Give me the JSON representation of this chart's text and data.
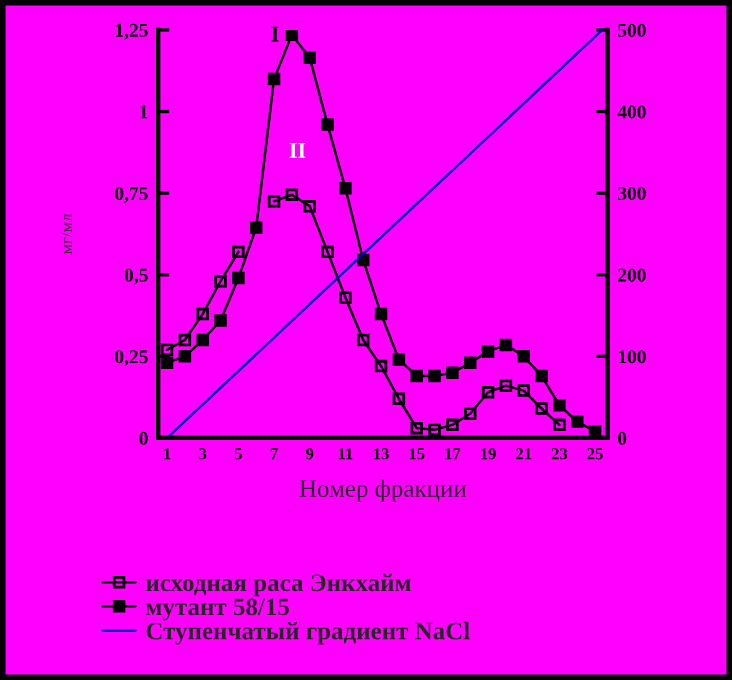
{
  "chart_data": {
    "type": "line",
    "xlabel": "Номер фракции",
    "ylabel": "мг/мл",
    "x": [
      1,
      2,
      3,
      4,
      5,
      6,
      7,
      8,
      9,
      10,
      11,
      12,
      13,
      14,
      15,
      16,
      17,
      18,
      19,
      20,
      21,
      22,
      23,
      24,
      25
    ],
    "xlim": [
      0.5,
      25.7
    ],
    "xticks": [
      1,
      3,
      5,
      7,
      9,
      11,
      13,
      15,
      17,
      19,
      21,
      23,
      25
    ],
    "ylim": [
      0,
      1.25
    ],
    "yticks": [
      0,
      {
        "value": 0.25,
        "label": "0,25"
      },
      {
        "value": 0.5,
        "label": "0,5"
      },
      {
        "value": 0.75,
        "label": "0,75"
      },
      1,
      {
        "value": 1.25,
        "label": "1,25"
      }
    ],
    "y2lim": [
      0,
      500
    ],
    "y2ticks": [
      0,
      100,
      200,
      300,
      400,
      500
    ],
    "series": [
      {
        "name": "исходная раса Энкхайм",
        "color": "#000000",
        "marker": "square",
        "values": [
          0.27,
          0.3,
          0.38,
          0.48,
          0.57,
          null,
          0.725,
          0.745,
          0.71,
          0.57,
          0.43,
          0.3,
          0.22,
          0.12,
          0.03,
          0.025,
          0.04,
          0.075,
          0.14,
          0.16,
          0.145,
          0.09,
          0.04,
          null,
          null
        ]
      },
      {
        "name": "мутант 58/15",
        "color": "#000000",
        "marker": "square",
        "values": [
          0.23,
          0.25,
          0.3,
          0.36,
          0.49,
          0.645,
          1.1,
          1.235,
          1.165,
          0.96,
          0.765,
          0.545,
          0.38,
          0.24,
          0.19,
          0.19,
          0.2,
          0.23,
          0.265,
          0.285,
          0.25,
          0.19,
          0.1,
          0.05,
          0.02
        ]
      },
      {
        "name": "Ступенчатый градиент NaCl",
        "color": "#0000c0",
        "marker": "none",
        "axis": "y2",
        "x": [
          1,
          25.4
        ],
        "values": [
          0,
          500
        ]
      }
    ],
    "annotations": [
      "I",
      "II"
    ],
    "legend": "bottom",
    "grid": false
  }
}
